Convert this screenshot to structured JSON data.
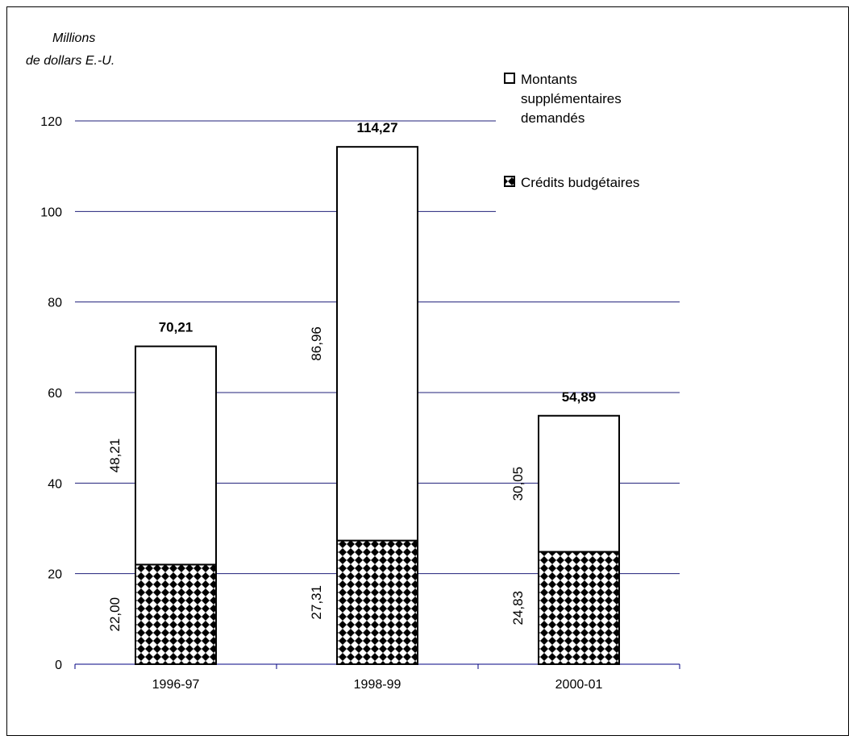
{
  "chart_data": {
    "type": "bar",
    "stacked": true,
    "ylabel_line1": "Millions",
    "ylabel_line2": "de dollars E.-U.",
    "categories": [
      "1996-97",
      "1998-99",
      "2000-01"
    ],
    "series": [
      {
        "name": "Crédits budgétaires",
        "values": [
          22.0,
          27.31,
          24.83
        ],
        "labels": [
          "22,00",
          "27,31",
          "24,83"
        ]
      },
      {
        "name": "Montants supplémentaires demandés",
        "name_lines": [
          "Montants",
          "supplémentaires",
          "demandés"
        ],
        "values": [
          48.21,
          86.96,
          30.05
        ],
        "labels": [
          "48,21",
          "86,96",
          "30,05"
        ]
      }
    ],
    "totals": [
      70.21,
      114.27,
      54.89
    ],
    "total_labels": [
      "70,21",
      "114,27",
      "54,89"
    ],
    "ylim": [
      0,
      120
    ],
    "yticks": [
      0,
      20,
      40,
      60,
      80,
      100,
      120
    ],
    "grid": true,
    "legend_position": "top-right",
    "colors": {
      "grid": "#1f1f7a",
      "axis": "#000080",
      "bar_outline": "#000000",
      "pattern_fg": "#000000",
      "pattern_bg": "#ffffff"
    }
  }
}
